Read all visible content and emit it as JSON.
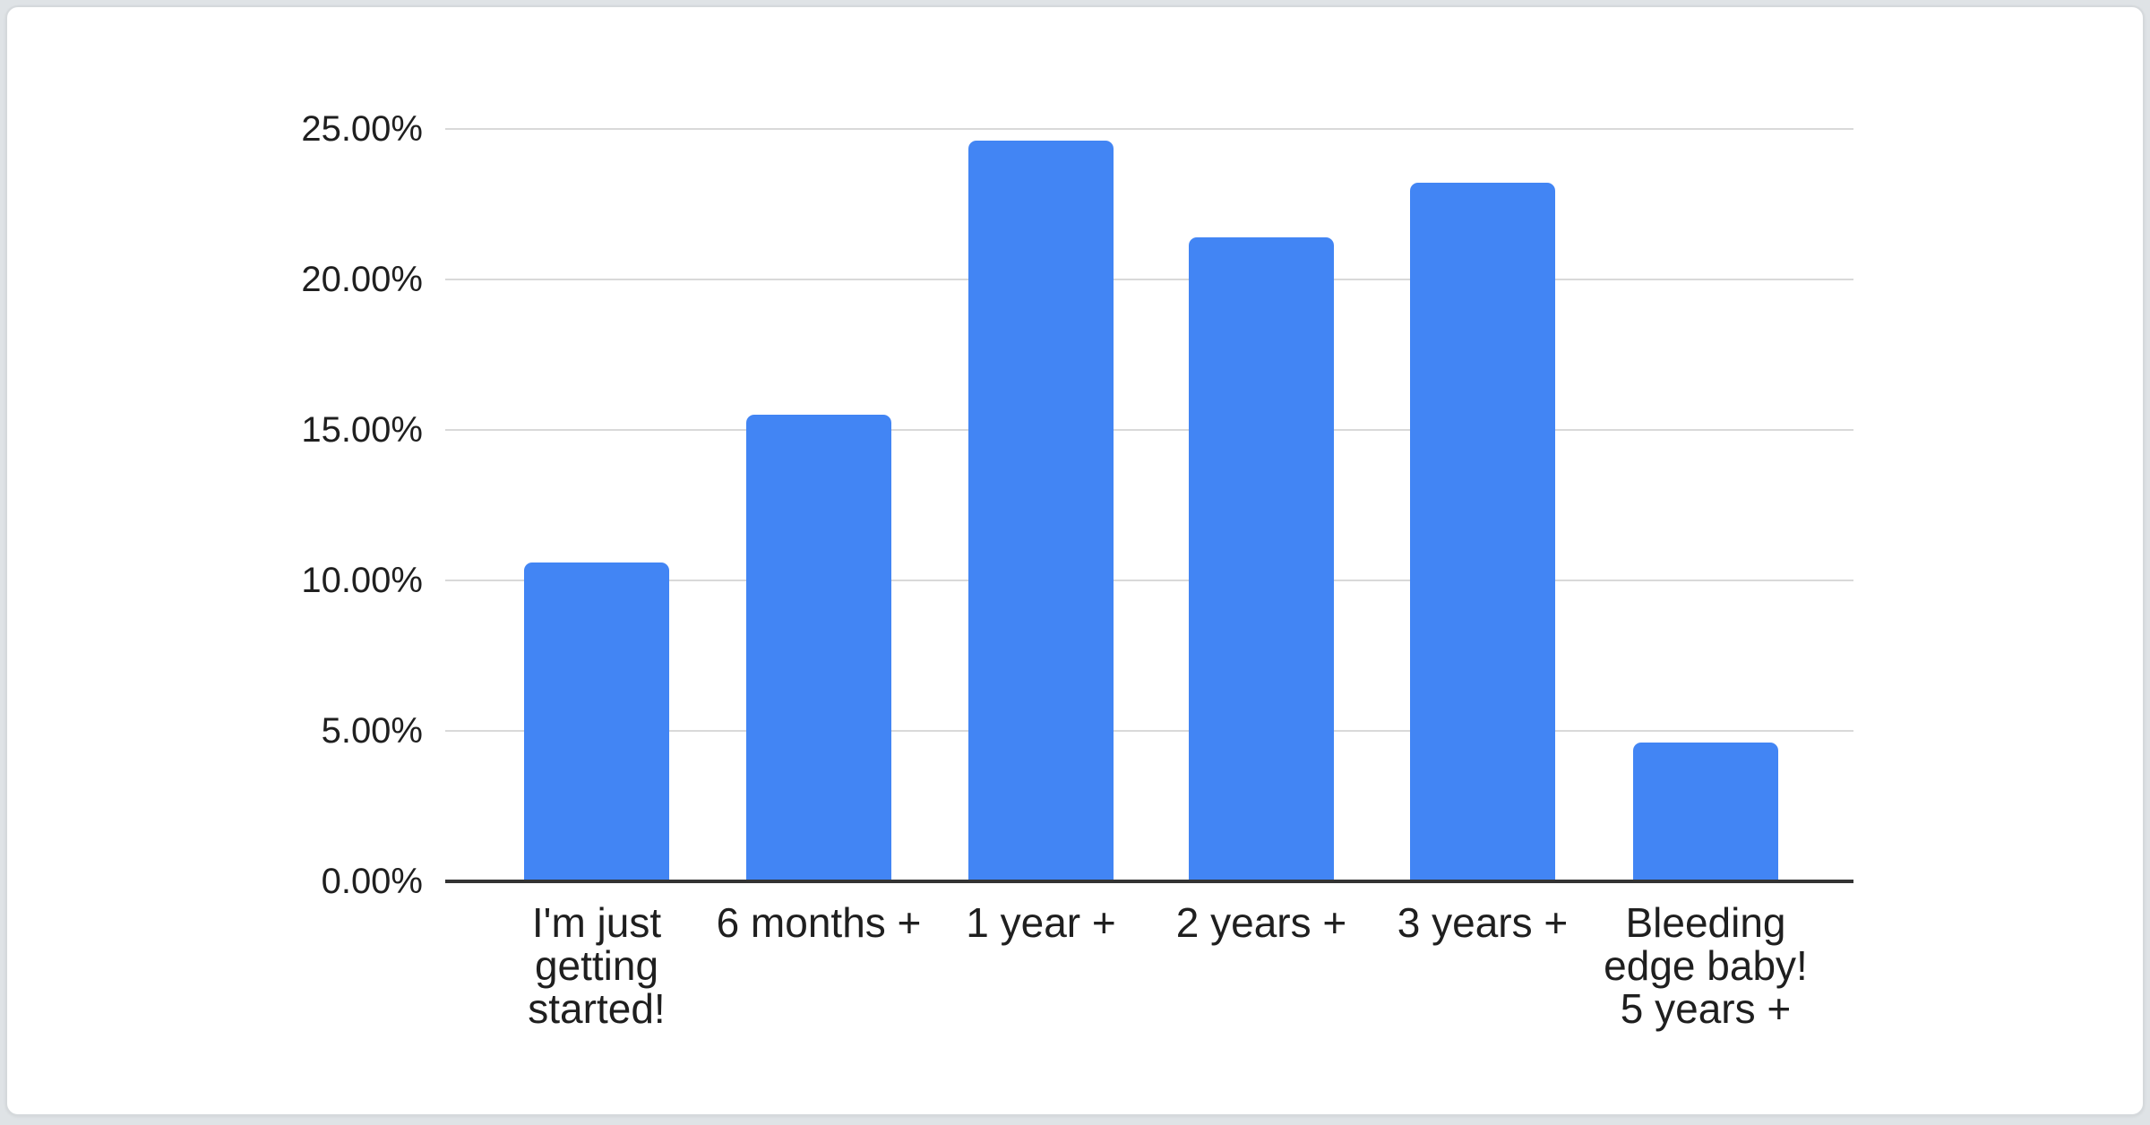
{
  "page": {
    "background": "#dfe3e6",
    "card_background": "#ffffff",
    "card_border": "#d5d9dc"
  },
  "chart_data": {
    "type": "bar",
    "title": "",
    "xlabel": "",
    "ylabel": "",
    "categories": [
      "I'm just getting started!",
      "6 months +",
      "1 year +",
      "2 years +",
      "3 years +",
      "Bleeding edge baby! 5 years +"
    ],
    "values": [
      10.6,
      15.5,
      24.6,
      21.4,
      23.2,
      4.6
    ],
    "unit": "%",
    "ylim": [
      0,
      25
    ],
    "ytick_labels": [
      "0.00%",
      "5.00%",
      "10.00%",
      "15.00%",
      "20.00%",
      "25.00%"
    ],
    "category_label_lines": [
      [
        "I'm just",
        "getting",
        "started!"
      ],
      [
        "6 months +"
      ],
      [
        "1 year +"
      ],
      [
        "2 years +"
      ],
      [
        "3 years +"
      ],
      [
        "Bleeding",
        "edge baby!",
        "5 years +"
      ]
    ],
    "grid": true,
    "legend": "none",
    "bar_color": "#4285f4",
    "gridline_color": "#d9d9d9",
    "axis_line_color": "#333333",
    "label_color": "#1f1f1f"
  }
}
